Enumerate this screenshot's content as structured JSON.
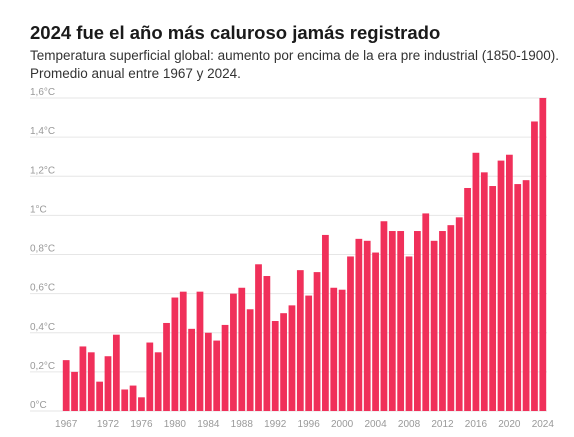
{
  "header": {
    "title": "2024 fue el año más caluroso jamás registrado",
    "subtitle": "Temperatura superficial global: aumento por encima de la era pre industrial (1850-1900). Promedio anual entre 1967 y 2024."
  },
  "colors": {
    "bar": "#f0305a",
    "grid": "#e6e6e6",
    "tick_text": "#999999"
  },
  "chart_data": {
    "type": "bar",
    "title": "2024 fue el año más caluroso jamás registrado",
    "subtitle": "Temperatura superficial global: aumento por encima de la era pre industrial (1850-1900). Promedio anual entre 1967 y 2024.",
    "ylim": [
      0,
      1.6
    ],
    "yticks": [
      0,
      0.2,
      0.4,
      0.6,
      0.8,
      1.0,
      1.2,
      1.4,
      1.6
    ],
    "ytick_labels": [
      "0°C",
      "0,2°C",
      "0,4°C",
      "0,6°C",
      "0,8°C",
      "1°C",
      "1,2°C",
      "1,4°C",
      "1,6°C"
    ],
    "xtick_labels": [
      "1967",
      "1972",
      "1976",
      "1980",
      "1984",
      "1988",
      "1992",
      "1996",
      "2000",
      "2004",
      "2008",
      "2012",
      "2016",
      "2020",
      "2024"
    ],
    "grid": true,
    "categories": [
      1967,
      1968,
      1969,
      1970,
      1971,
      1972,
      1973,
      1974,
      1975,
      1976,
      1977,
      1978,
      1979,
      1980,
      1981,
      1982,
      1983,
      1984,
      1985,
      1986,
      1987,
      1988,
      1989,
      1990,
      1991,
      1992,
      1993,
      1994,
      1995,
      1996,
      1997,
      1998,
      1999,
      2000,
      2001,
      2002,
      2003,
      2004,
      2005,
      2006,
      2007,
      2008,
      2009,
      2010,
      2011,
      2012,
      2013,
      2014,
      2015,
      2016,
      2017,
      2018,
      2019,
      2020,
      2021,
      2022,
      2023,
      2024
    ],
    "values": [
      0.26,
      0.2,
      0.33,
      0.3,
      0.15,
      0.28,
      0.39,
      0.11,
      0.13,
      0.07,
      0.35,
      0.3,
      0.45,
      0.58,
      0.61,
      0.42,
      0.61,
      0.4,
      0.36,
      0.44,
      0.6,
      0.63,
      0.52,
      0.75,
      0.69,
      0.46,
      0.5,
      0.54,
      0.72,
      0.59,
      0.71,
      0.9,
      0.63,
      0.62,
      0.79,
      0.88,
      0.87,
      0.81,
      0.97,
      0.92,
      0.92,
      0.79,
      0.92,
      1.01,
      0.87,
      0.92,
      0.95,
      0.99,
      1.14,
      1.32,
      1.22,
      1.15,
      1.28,
      1.31,
      1.16,
      1.18,
      1.48,
      1.6
    ]
  }
}
